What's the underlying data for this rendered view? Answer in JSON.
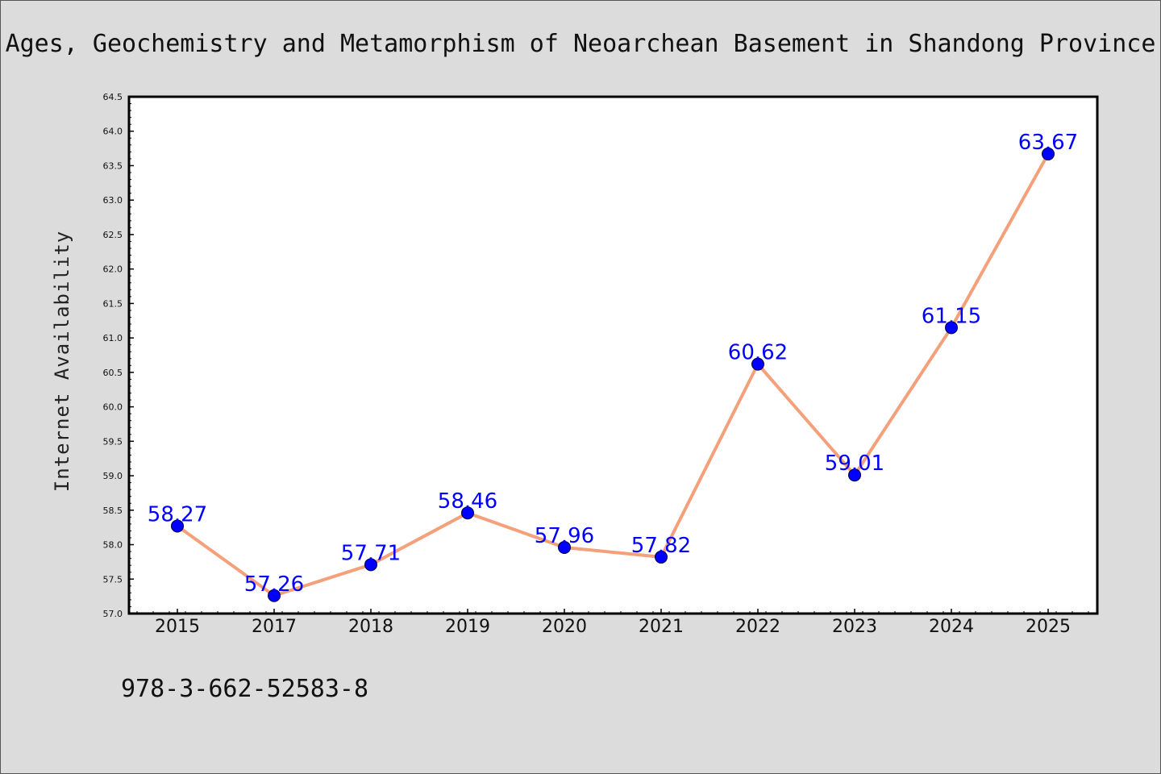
{
  "chart_data": {
    "type": "line",
    "title": "Ages, Geochemistry and Metamorphism of Neoarchean Basement in Shandong Province",
    "ylabel": "Internet Availability",
    "xlabel": "",
    "categories": [
      "2015",
      "2017",
      "2018",
      "2019",
      "2020",
      "2021",
      "2022",
      "2023",
      "2024",
      "2025"
    ],
    "series": [
      {
        "values": [
          58.27,
          57.26,
          57.71,
          58.46,
          57.96,
          57.82,
          60.62,
          59.01,
          61.15,
          63.67
        ],
        "labels": [
          "58.27",
          "57.26",
          "57.71",
          "58.46",
          "57.96",
          "57.82",
          "60.62",
          "59.01",
          "61.15",
          "63.67"
        ]
      }
    ],
    "ylim": [
      57.0,
      64.5
    ],
    "yticks": [
      "57.0",
      "57.5",
      "58.0",
      "58.5",
      "59.0",
      "59.5",
      "60.0",
      "60.5",
      "61.0",
      "61.5",
      "62.0",
      "62.5",
      "63.0",
      "63.5",
      "64.0",
      "64.5"
    ],
    "line_color": "#f4a07a",
    "marker_color": "#0000ff",
    "label_color": "#0000ff",
    "grid": false,
    "legend": "none"
  },
  "footer": {
    "isbn": "978-3-662-52583-8"
  }
}
